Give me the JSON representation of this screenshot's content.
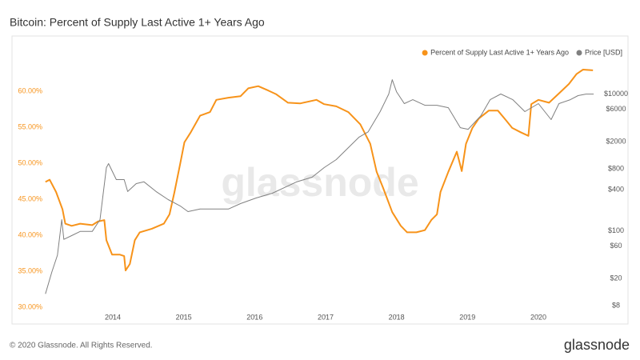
{
  "chart_data": {
    "type": "line",
    "title": "Bitcoin: Percent of Supply Last Active 1+ Years Ago",
    "watermark": "glassnode",
    "xlim": [
      2013.03,
      2020.79
    ],
    "xticks": [
      2014,
      2015,
      2016,
      2017,
      2018,
      2019,
      2020
    ],
    "ylim": [
      29,
      66
    ],
    "yticks": [
      {
        "value": 30,
        "label": "30.00%"
      },
      {
        "value": 35,
        "label": "35.00%"
      },
      {
        "value": 40,
        "label": "40.00%"
      },
      {
        "value": 45,
        "label": "45.00%"
      },
      {
        "value": 50,
        "label": "50.00%"
      },
      {
        "value": 55,
        "label": "55.00%"
      },
      {
        "value": 60,
        "label": "60.00%"
      }
    ],
    "y2lim": [
      6,
      47000
    ],
    "y2log": true,
    "y2ticks": [
      {
        "value": 8,
        "label": "$8"
      },
      {
        "value": 20,
        "label": "$20"
      },
      {
        "value": 60,
        "label": "$60"
      },
      {
        "value": 100,
        "label": "$100"
      },
      {
        "value": 400,
        "label": "$400"
      },
      {
        "value": 800,
        "label": "$800"
      },
      {
        "value": 2000,
        "label": "$2000"
      },
      {
        "value": 6000,
        "label": "$6000"
      },
      {
        "value": 10000,
        "label": "$10000"
      }
    ],
    "legend": "top-right",
    "series": [
      {
        "name": "Percent of Supply Last Active 1+ Years Ago",
        "color": "#f7931a",
        "axis": "y",
        "x": [
          2013.05,
          2013.11,
          2013.2,
          2013.29,
          2013.33,
          2013.42,
          2013.54,
          2013.71,
          2013.79,
          2013.88,
          2013.91,
          2013.99,
          2014.1,
          2014.16,
          2014.18,
          2014.24,
          2014.31,
          2014.38,
          2014.55,
          2014.72,
          2014.8,
          2014.87,
          2014.95,
          2015.01,
          2015.1,
          2015.23,
          2015.37,
          2015.46,
          2015.63,
          2015.8,
          2015.91,
          2016.05,
          2016.19,
          2016.3,
          2016.47,
          2016.64,
          2016.87,
          2016.98,
          2017.15,
          2017.32,
          2017.49,
          2017.63,
          2017.72,
          2017.81,
          2017.94,
          2018.06,
          2018.15,
          2018.28,
          2018.4,
          2018.49,
          2018.57,
          2018.62,
          2018.73,
          2018.85,
          2018.92,
          2018.98,
          2019.07,
          2019.16,
          2019.3,
          2019.43,
          2019.54,
          2019.63,
          2019.75,
          2019.86,
          2019.9,
          2020.0,
          2020.15,
          2020.28,
          2020.43,
          2020.54,
          2020.63,
          2020.77
        ],
        "values": [
          47.4,
          47.7,
          46.0,
          43.6,
          41.6,
          41.3,
          41.6,
          41.4,
          41.9,
          42.1,
          39.3,
          37.3,
          37.3,
          37.1,
          35.1,
          36.0,
          39.3,
          40.4,
          40.9,
          41.6,
          42.9,
          46.0,
          49.9,
          52.9,
          54.3,
          56.6,
          57.1,
          58.8,
          59.1,
          59.3,
          60.4,
          60.7,
          60.1,
          59.6,
          58.4,
          58.3,
          58.8,
          58.2,
          57.9,
          57.1,
          55.4,
          52.7,
          48.8,
          46.6,
          43.2,
          41.3,
          40.4,
          40.4,
          40.7,
          42.1,
          42.9,
          46.0,
          48.8,
          51.6,
          48.9,
          52.7,
          54.9,
          56.2,
          57.3,
          57.3,
          56.0,
          54.9,
          54.3,
          53.8,
          58.2,
          58.8,
          58.4,
          59.6,
          61.0,
          62.4,
          63.0,
          62.9
        ]
      },
      {
        "name": "Price [USD]",
        "color": "#808080",
        "axis": "y2",
        "x": [
          2013.05,
          2013.14,
          2013.22,
          2013.28,
          2013.31,
          2013.42,
          2013.54,
          2013.71,
          2013.82,
          2013.91,
          2013.94,
          2014.05,
          2014.16,
          2014.21,
          2014.33,
          2014.44,
          2014.61,
          2014.78,
          2014.95,
          2015.06,
          2015.23,
          2015.46,
          2015.63,
          2015.8,
          2016.02,
          2016.25,
          2016.42,
          2016.59,
          2016.81,
          2016.98,
          2017.15,
          2017.32,
          2017.47,
          2017.6,
          2017.77,
          2017.89,
          2017.94,
          2018.0,
          2018.11,
          2018.23,
          2018.4,
          2018.57,
          2018.73,
          2018.9,
          2019.01,
          2019.19,
          2019.32,
          2019.47,
          2019.64,
          2019.81,
          2020.0,
          2020.18,
          2020.29,
          2020.45,
          2020.56,
          2020.67,
          2020.78
        ],
        "values": [
          12,
          25,
          44,
          146,
          75,
          85,
          98,
          98,
          146,
          840,
          960,
          560,
          560,
          375,
          490,
          520,
          375,
          286,
          231,
          191,
          208,
          208,
          208,
          250,
          302,
          355,
          429,
          518,
          608,
          840,
          1100,
          1640,
          2330,
          2800,
          5520,
          9980,
          16200,
          10800,
          7230,
          8260,
          6840,
          6840,
          6300,
          3220,
          3050,
          4820,
          8260,
          10000,
          8260,
          5520,
          7230,
          4220,
          7230,
          8260,
          9460,
          9980,
          9980
        ]
      }
    ]
  },
  "footer": {
    "copyright": "© 2020 Glassnode. All Rights Reserved.",
    "brand": "glassnode"
  }
}
